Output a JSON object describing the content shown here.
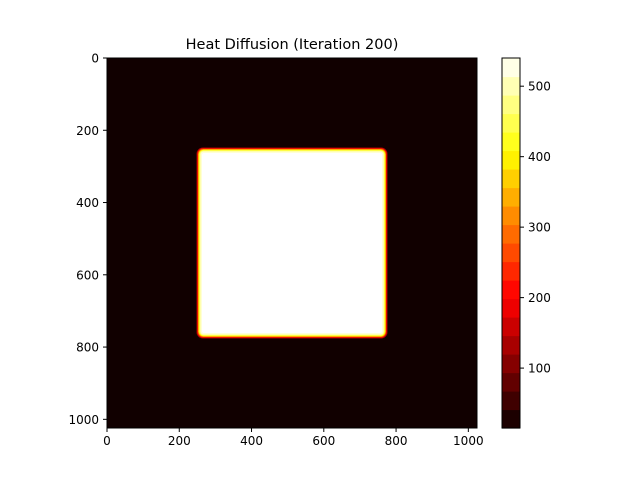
{
  "chart_data": {
    "type": "heatmap",
    "title": "Heat Diffusion (Iteration 200)",
    "xlabel": "",
    "ylabel": "",
    "grid_size": 1024,
    "xlim": [
      0,
      1024
    ],
    "ylim": [
      1024,
      0
    ],
    "x_ticks": [
      0,
      200,
      400,
      600,
      800,
      1000
    ],
    "y_ticks": [
      0,
      200,
      400,
      600,
      800,
      1000
    ],
    "background_value": 20,
    "hot_region": {
      "x_range": [
        256,
        768
      ],
      "y_range": [
        256,
        768
      ],
      "value": 540
    },
    "colormap": "hot",
    "colorbar": {
      "range": [
        15,
        540
      ],
      "ticks": [
        100,
        200,
        300,
        400,
        500
      ],
      "levels": 20
    }
  }
}
